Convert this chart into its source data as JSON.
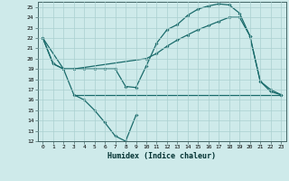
{
  "xlabel": "Humidex (Indice chaleur)",
  "xlim": [
    -0.5,
    23.5
  ],
  "ylim": [
    12,
    25.5
  ],
  "background_color": "#ceeaea",
  "grid_color": "#aacfcf",
  "line_color": "#1a6b6b",
  "line1_x": [
    0,
    1,
    2,
    3,
    4,
    5,
    6,
    7,
    8,
    9,
    10,
    11,
    12,
    13,
    14,
    15,
    16,
    17,
    18,
    19,
    20,
    21,
    22,
    23
  ],
  "line1_y": [
    22,
    19.5,
    19,
    19,
    19,
    19,
    19,
    19,
    17.3,
    17.2,
    19.3,
    21.5,
    22.8,
    23.3,
    24.2,
    24.8,
    25.1,
    25.3,
    25.2,
    24.4,
    22.2,
    17.8,
    17.0,
    16.5
  ],
  "line2_x": [
    0,
    1,
    2,
    3,
    4,
    5,
    6,
    7,
    8,
    9
  ],
  "line2_y": [
    22,
    19.5,
    19,
    16.5,
    16,
    15,
    13.8,
    12.5,
    12,
    14.5
  ],
  "line3_x": [
    3,
    9,
    10,
    11,
    12,
    13,
    14,
    15,
    16,
    17,
    18,
    19,
    20,
    21,
    22,
    23
  ],
  "line3_y": [
    16.5,
    16.5,
    16.5,
    16.5,
    16.5,
    16.5,
    16.5,
    16.5,
    16.5,
    16.5,
    16.5,
    16.5,
    16.5,
    16.5,
    16.5,
    16.5
  ],
  "line4_x": [
    0,
    2,
    3,
    10,
    11,
    12,
    13,
    14,
    15,
    16,
    17,
    18,
    19,
    20,
    21,
    22,
    23
  ],
  "line4_y": [
    22,
    19,
    19,
    20.0,
    20.5,
    21.2,
    21.8,
    22.3,
    22.8,
    23.2,
    23.6,
    24.0,
    24.0,
    22.2,
    17.8,
    16.8,
    16.5
  ]
}
